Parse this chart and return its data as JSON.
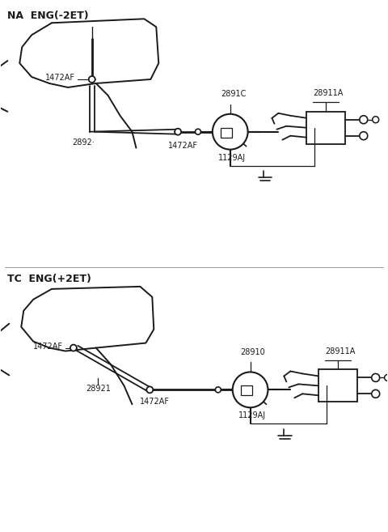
{
  "bg_color": "#ffffff",
  "line_color": "#1a1a1a",
  "section1_label": "NA  ENG(-2ET)",
  "section2_label": "TC  ENG(+2ET)",
  "top": {
    "label_1472AF_a": "1472AF",
    "label_2892": "2892·",
    "label_1472AF_b": "1472AF",
    "label_2891C": "2891C",
    "label_28911A": "28911A",
    "label_1129AJ": "1129AJ"
  },
  "bottom": {
    "label_1472AF_a": "1472AF",
    "label_28921": "28921",
    "label_1472AF_b": "1472AF",
    "label_28910": "28910",
    "label_28911A": "28911A",
    "label_1129AJ": "1129AJ"
  }
}
